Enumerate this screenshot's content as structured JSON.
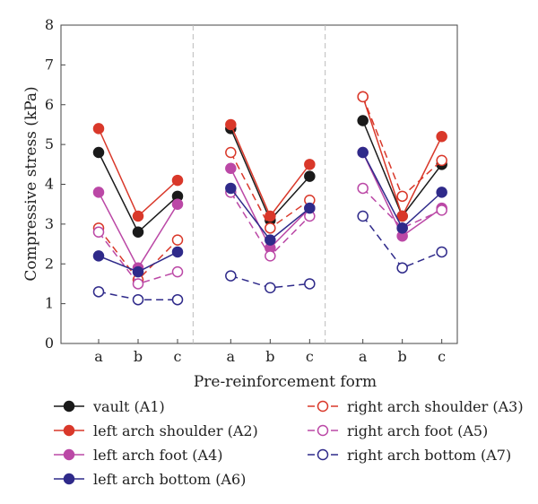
{
  "chart_data": {
    "type": "line",
    "xlabel": "Pre-reinforcement form",
    "ylabel": "Compressive stress (kPa)",
    "ylim": [
      0,
      8
    ],
    "yticks": [
      0,
      1,
      2,
      3,
      4,
      5,
      6,
      7,
      8
    ],
    "grid": false,
    "legend_position": "bottom",
    "groups": 3,
    "categories": [
      "a",
      "b",
      "c"
    ],
    "series": [
      {
        "name": "vault (A1)",
        "color": "#1a1a1a",
        "filled": true,
        "dashed": false,
        "groups": [
          [
            4.8,
            2.8,
            3.7
          ],
          [
            5.4,
            3.1,
            4.2
          ],
          [
            5.6,
            3.2,
            4.5
          ]
        ]
      },
      {
        "name": "left arch shoulder (A2)",
        "color": "#d9382a",
        "filled": true,
        "dashed": false,
        "groups": [
          [
            5.4,
            3.2,
            4.1
          ],
          [
            5.5,
            3.2,
            4.5
          ],
          [
            6.2,
            3.2,
            5.2
          ]
        ]
      },
      {
        "name": "right arch shoulder (A3)",
        "color": "#d9382a",
        "filled": false,
        "dashed": true,
        "groups": [
          [
            2.9,
            1.6,
            2.6
          ],
          [
            4.8,
            2.9,
            3.6
          ],
          [
            6.2,
            3.7,
            4.6
          ]
        ]
      },
      {
        "name": "left arch foot (A4)",
        "color": "#bb48a6",
        "filled": true,
        "dashed": false,
        "groups": [
          [
            3.8,
            1.9,
            3.5
          ],
          [
            4.4,
            2.4,
            3.4
          ],
          [
            4.8,
            2.7,
            3.4
          ]
        ]
      },
      {
        "name": "right arch foot (A5)",
        "color": "#bb48a6",
        "filled": false,
        "dashed": true,
        "groups": [
          [
            2.8,
            1.5,
            1.8
          ],
          [
            3.8,
            2.2,
            3.2
          ],
          [
            3.9,
            2.9,
            3.35
          ]
        ]
      },
      {
        "name": "left arch bottom (A6)",
        "color": "#2f2a8a",
        "filled": true,
        "dashed": false,
        "groups": [
          [
            2.2,
            1.8,
            2.3
          ],
          [
            3.9,
            2.6,
            3.4
          ],
          [
            4.8,
            2.9,
            3.8
          ]
        ]
      },
      {
        "name": "right arch bottom (A7)",
        "color": "#2f2a8a",
        "filled": false,
        "dashed": true,
        "groups": [
          [
            1.3,
            1.1,
            1.1
          ],
          [
            1.7,
            1.4,
            1.5
          ],
          [
            3.2,
            1.9,
            2.3
          ]
        ]
      }
    ]
  }
}
